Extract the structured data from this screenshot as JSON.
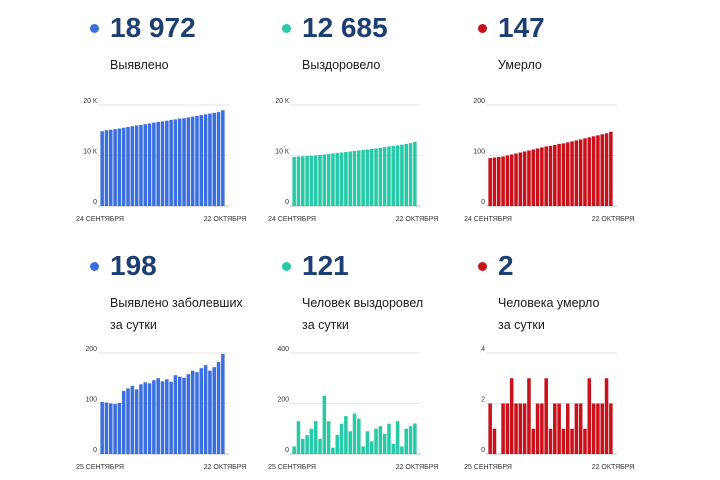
{
  "panels": [
    {
      "id": "identified-total",
      "value": "18 972",
      "label_lines": [
        "Выявлено"
      ],
      "color": "#3b6fe0",
      "chart_data": {
        "type": "bar",
        "x_start_label": "24 СЕНТЯБРЯ",
        "x_end_label": "22 ОКТЯБРЯ",
        "yticks": [
          {
            "value": 0,
            "label": "0"
          },
          {
            "value": 10000,
            "label": "10 К"
          },
          {
            "value": 20000,
            "label": "20 К"
          }
        ],
        "ylim": [
          0,
          20000
        ],
        "values": [
          14800,
          15000,
          15100,
          15200,
          15350,
          15500,
          15650,
          15800,
          15950,
          16050,
          16200,
          16350,
          16500,
          16650,
          16750,
          16900,
          17050,
          17150,
          17300,
          17400,
          17550,
          17700,
          17850,
          18000,
          18150,
          18300,
          18450,
          18600,
          18972
        ]
      }
    },
    {
      "id": "recovered-total",
      "value": "12 685",
      "label_lines": [
        "Выздоровело"
      ],
      "color": "#27c9a6",
      "chart_data": {
        "type": "bar",
        "x_start_label": "24 СЕНТЯБРЯ",
        "x_end_label": "22 ОКТЯБРЯ",
        "yticks": [
          {
            "value": 0,
            "label": "0"
          },
          {
            "value": 10000,
            "label": "10 К"
          },
          {
            "value": 20000,
            "label": "20 К"
          }
        ],
        "ylim": [
          0,
          20000
        ],
        "values": [
          9700,
          9800,
          9850,
          9900,
          9950,
          10000,
          10100,
          10200,
          10300,
          10400,
          10500,
          10600,
          10700,
          10800,
          10900,
          11000,
          11100,
          11200,
          11300,
          11400,
          11500,
          11650,
          11800,
          11900,
          12000,
          12150,
          12300,
          12450,
          12685
        ]
      }
    },
    {
      "id": "deaths-total",
      "value": "147",
      "label_lines": [
        "Умерло"
      ],
      "color": "#c8111a",
      "chart_data": {
        "type": "bar",
        "x_start_label": "24 СЕНТЯБРЯ",
        "x_end_label": "22 ОКТЯБРЯ",
        "yticks": [
          {
            "value": 0,
            "label": "0"
          },
          {
            "value": 100,
            "label": "100"
          },
          {
            "value": 200,
            "label": "200"
          }
        ],
        "ylim": [
          0,
          200
        ],
        "values": [
          95,
          96,
          97,
          98,
          100,
          102,
          104,
          106,
          108,
          110,
          112,
          114,
          116,
          118,
          119,
          121,
          123,
          124,
          126,
          128,
          130,
          132,
          134,
          136,
          138,
          140,
          142,
          144,
          147
        ]
      }
    },
    {
      "id": "identified-daily",
      "value": "198",
      "label_lines": [
        "Выявлено заболевших",
        "за сутки"
      ],
      "color": "#3b6fe0",
      "chart_data": {
        "type": "bar",
        "x_start_label": "25 СЕНТЯБРЯ",
        "x_end_label": "22 ОКТЯБРЯ",
        "yticks": [
          {
            "value": 0,
            "label": "0"
          },
          {
            "value": 100,
            "label": "100"
          },
          {
            "value": 200,
            "label": "200"
          }
        ],
        "ylim": [
          0,
          200
        ],
        "values": [
          103,
          102,
          100,
          99,
          101,
          125,
          130,
          135,
          128,
          138,
          142,
          140,
          146,
          150,
          144,
          148,
          143,
          156,
          153,
          151,
          158,
          165,
          162,
          170,
          176,
          165,
          172,
          182,
          198
        ]
      }
    },
    {
      "id": "recovered-daily",
      "value": "121",
      "label_lines": [
        "Человек выздоровел",
        "за сутки"
      ],
      "color": "#27c9a6",
      "chart_data": {
        "type": "bar",
        "x_start_label": "25 СЕНТЯБРЯ",
        "x_end_label": "22 ОКТЯБРЯ",
        "yticks": [
          {
            "value": 0,
            "label": "0"
          },
          {
            "value": 200,
            "label": "200"
          },
          {
            "value": 400,
            "label": "400"
          }
        ],
        "ylim": [
          0,
          400
        ],
        "values": [
          30,
          130,
          60,
          75,
          100,
          130,
          60,
          230,
          130,
          25,
          75,
          120,
          150,
          90,
          160,
          140,
          30,
          90,
          50,
          100,
          110,
          80,
          120,
          40,
          130,
          30,
          100,
          110,
          121
        ]
      }
    },
    {
      "id": "deaths-daily",
      "value": "2",
      "label_lines": [
        "Человека умерло",
        "за сутки"
      ],
      "color": "#c8111a",
      "chart_data": {
        "type": "bar",
        "x_start_label": "25 СЕНТЯБРЯ",
        "x_end_label": "22 ОКТЯБРЯ",
        "yticks": [
          {
            "value": 0,
            "label": "0"
          },
          {
            "value": 2,
            "label": "2"
          },
          {
            "value": 4,
            "label": "4"
          }
        ],
        "ylim": [
          0,
          4
        ],
        "values": [
          2,
          1,
          0,
          2,
          2,
          3,
          2,
          2,
          2,
          3,
          1,
          2,
          2,
          3,
          1,
          2,
          2,
          1,
          2,
          1,
          2,
          2,
          1,
          3,
          2,
          2,
          2,
          3,
          2
        ]
      }
    }
  ]
}
